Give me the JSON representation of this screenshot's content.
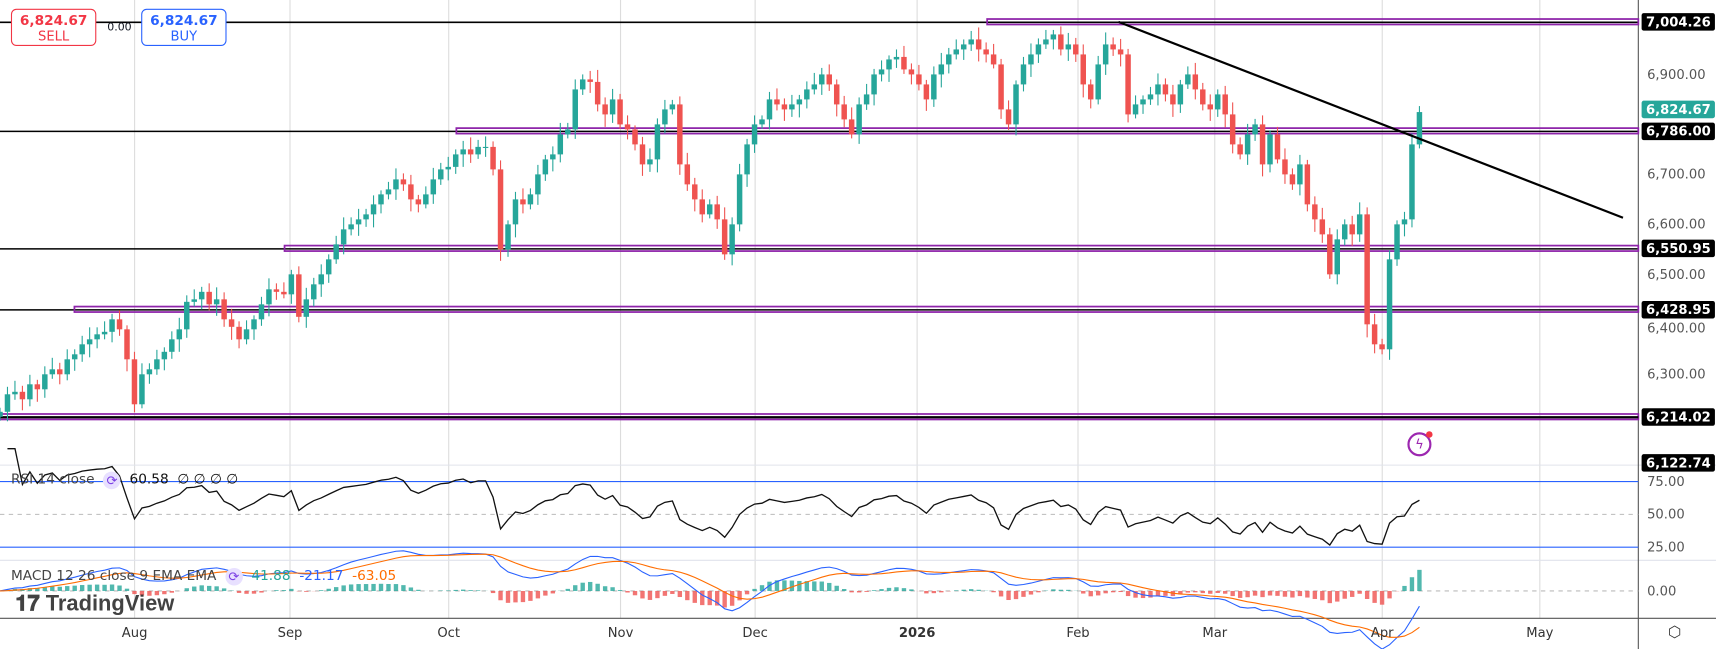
{
  "quote": {
    "sell_price": "6,824.67",
    "sell_label": "SELL",
    "buy_price": "6,824.67",
    "buy_label": "BUY",
    "spread": "0.00"
  },
  "price_axis": {
    "ticks": [
      "6,900.00",
      "6,700.00",
      "6,600.00",
      "6,500.00",
      "6,400.00",
      "6,300.00"
    ],
    "levels": [
      {
        "label": "7,004.26",
        "value": 7004.26
      },
      {
        "label": "6,786.00",
        "value": 6786
      },
      {
        "label": "6,550.95",
        "value": 6550.95
      },
      {
        "label": "6,428.95",
        "value": 6428.95
      },
      {
        "label": "6,214.02",
        "value": 6214.02
      },
      {
        "label": "6,122.74",
        "value": 6122.74
      }
    ],
    "last": {
      "label": "6,824.67",
      "value": 6824.67
    }
  },
  "rsi": {
    "title": "RSI 14 close",
    "value": "60.58",
    "extra": "∅ ∅ ∅ ∅",
    "ticks": [
      "75.00",
      "50.00",
      "25.00"
    ]
  },
  "macd": {
    "title": "MACD 12 26 close 9 EMA EMA",
    "hist": "41.88",
    "macd": "-21.17",
    "signal": "-63.05",
    "ticks": [
      "0.00"
    ]
  },
  "time_axis": [
    "Aug",
    "Sep",
    "Oct",
    "Nov",
    "Dec",
    "2026",
    "Feb",
    "Mar",
    "Apr",
    "May"
  ],
  "logo": "TradingView",
  "colors": {
    "up": "#26a69a",
    "down": "#ef5350",
    "level": "#8e24aa",
    "rsi_band": "#2962ff",
    "macd": "#2962ff",
    "signal": "#ff6d00"
  },
  "chart_data": {
    "type": "candlestick",
    "ylim": [
      6100,
      7040
    ],
    "closes": [
      6225,
      6260,
      6265,
      6250,
      6280,
      6270,
      6300,
      6310,
      6300,
      6330,
      6340,
      6360,
      6370,
      6380,
      6385,
      6410,
      6390,
      6330,
      6240,
      6300,
      6310,
      6330,
      6345,
      6370,
      6390,
      6445,
      6450,
      6465,
      6440,
      6450,
      6410,
      6395,
      6370,
      6390,
      6410,
      6440,
      6470,
      6465,
      6460,
      6500,
      6415,
      6450,
      6480,
      6500,
      6530,
      6560,
      6590,
      6600,
      6610,
      6620,
      6640,
      6660,
      6670,
      6690,
      6680,
      6650,
      6640,
      6660,
      6690,
      6710,
      6715,
      6740,
      6750,
      6740,
      6755,
      6755,
      6710,
      6550,
      6600,
      6650,
      6640,
      6660,
      6700,
      6730,
      6740,
      6780,
      6790,
      6870,
      6890,
      6885,
      6840,
      6820,
      6850,
      6800,
      6790,
      6760,
      6720,
      6730,
      6800,
      6830,
      6840,
      6720,
      6680,
      6650,
      6620,
      6640,
      6610,
      6540,
      6600,
      6700,
      6760,
      6800,
      6810,
      6850,
      6840,
      6830,
      6840,
      6850,
      6870,
      6880,
      6900,
      6880,
      6840,
      6810,
      6780,
      6840,
      6860,
      6900,
      6910,
      6930,
      6935,
      6910,
      6900,
      6880,
      6850,
      6900,
      6920,
      6940,
      6950,
      6960,
      6970,
      6950,
      6940,
      6920,
      6830,
      6800,
      6880,
      6920,
      6940,
      6960,
      6970,
      6980,
      6950,
      6960,
      6940,
      6880,
      6850,
      6920,
      6960,
      6950,
      6940,
      6820,
      6840,
      6850,
      6860,
      6880,
      6860,
      6840,
      6880,
      6900,
      6870,
      6840,
      6830,
      6860,
      6820,
      6760,
      6740,
      6780,
      6800,
      6720,
      6780,
      6730,
      6700,
      6680,
      6720,
      6640,
      6610,
      6580,
      6500,
      6570,
      6600,
      6580,
      6620,
      6400,
      6360,
      6350,
      6530,
      6600,
      6610,
      6760,
      6824.67
    ],
    "trendline": [
      {
        "x": "Feb",
        "value": 7004
      },
      {
        "x": "mid-Apr",
        "value": 6680
      }
    ]
  }
}
